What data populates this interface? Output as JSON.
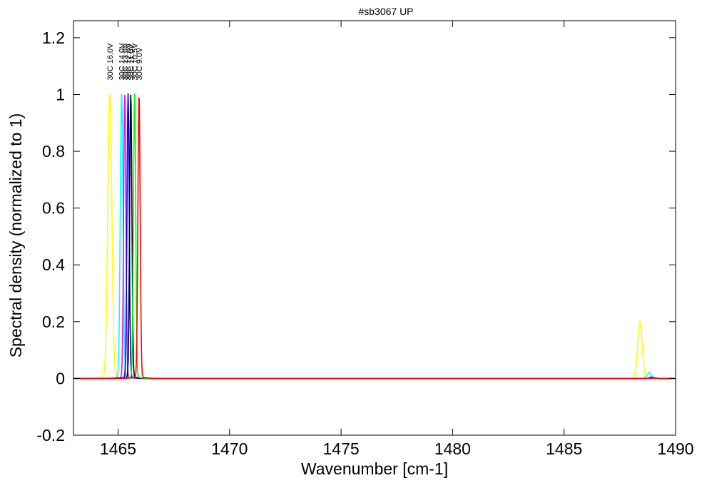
{
  "chart_data": {
    "type": "line",
    "title": "#sb3067 UP",
    "xlabel": "Wavenumber [cm-1]",
    "ylabel": "Spectral density (normalized to 1)",
    "xlim": [
      1463,
      1490
    ],
    "ylim": [
      -0.2,
      1.26
    ],
    "x_ticks": [
      1465,
      1470,
      1475,
      1480,
      1485,
      1490
    ],
    "y_ticks": [
      -0.2,
      0,
      0.2,
      0.4,
      0.6,
      0.8,
      1,
      1.2
    ],
    "x_tick_labels": [
      "1465",
      "1470",
      "1475",
      "1480",
      "1485",
      "1490"
    ],
    "y_tick_labels": [
      "-0.2",
      "0",
      "0.2",
      "0.4",
      "0.6",
      "0.8",
      "1",
      "1.2"
    ],
    "grid": false,
    "legend": "none",
    "series": [
      {
        "label": "30C 16.0V",
        "color": "#ffff00",
        "peak_x": 1464.63,
        "peak_y": 1.0,
        "width": 0.09,
        "side_x": 1488.4,
        "side_y": 0.2,
        "side_width": 0.1
      },
      {
        "label": "30C 14.0V",
        "color": "#00ffff",
        "peak_x": 1465.16,
        "peak_y": 1.0,
        "width": 0.06,
        "side_x": 1488.82,
        "side_y": 0.02,
        "side_width": 0.1
      },
      {
        "label": "30C 13.0V",
        "color": "#ff00ff",
        "peak_x": 1465.3,
        "peak_y": 1.0,
        "width": 0.05,
        "side_x": 1488.9,
        "side_y": 0.005,
        "side_width": 0.08
      },
      {
        "label": "30C 12.0V",
        "color": "#0000ff",
        "peak_x": 1465.45,
        "peak_y": 1.0,
        "width": 0.05,
        "side_x": 1488.95,
        "side_y": 0.004,
        "side_width": 0.08
      },
      {
        "label": "30C 11.0V",
        "color": "#000000",
        "peak_x": 1465.57,
        "peak_y": 1.0,
        "width": 0.05,
        "side_x": 1489.0,
        "side_y": 0.003,
        "side_width": 0.08
      },
      {
        "label": "30C 10.5V",
        "color": "#00ff00",
        "peak_x": 1465.74,
        "peak_y": 1.0,
        "width": 0.05,
        "side_x": 1489.05,
        "side_y": 0.003,
        "side_width": 0.08
      },
      {
        "label": "30C 9.0V",
        "color": "#ff0000",
        "peak_x": 1465.94,
        "peak_y": 1.0,
        "width": 0.05,
        "side_x": 1489.1,
        "side_y": 0.002,
        "side_width": 0.08
      }
    ]
  }
}
